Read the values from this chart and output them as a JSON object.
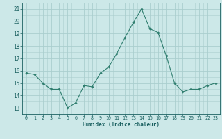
{
  "x": [
    0,
    1,
    2,
    3,
    4,
    5,
    6,
    7,
    8,
    9,
    10,
    11,
    12,
    13,
    14,
    15,
    16,
    17,
    18,
    19,
    20,
    21,
    22,
    23
  ],
  "y": [
    15.8,
    15.7,
    15.0,
    14.5,
    14.5,
    13.0,
    13.4,
    14.8,
    14.7,
    15.8,
    16.3,
    17.4,
    18.7,
    19.9,
    21.0,
    19.4,
    19.1,
    17.2,
    15.0,
    14.3,
    14.5,
    14.5,
    14.8,
    15.0
  ],
  "line_color": "#2e7d6e",
  "marker_color": "#2e7d6e",
  "bg_color": "#cce8e8",
  "grid_color": "#aacece",
  "xlabel": "Humidex (Indice chaleur)",
  "ylabel_ticks": [
    13,
    14,
    15,
    16,
    17,
    18,
    19,
    20,
    21
  ],
  "xlim": [
    -0.5,
    23.5
  ],
  "ylim": [
    12.5,
    21.5
  ],
  "xtick_labels": [
    "0",
    "1",
    "2",
    "3",
    "4",
    "5",
    "6",
    "7",
    "8",
    "9",
    "10",
    "11",
    "12",
    "13",
    "14",
    "15",
    "16",
    "17",
    "18",
    "19",
    "20",
    "21",
    "22",
    "23"
  ]
}
